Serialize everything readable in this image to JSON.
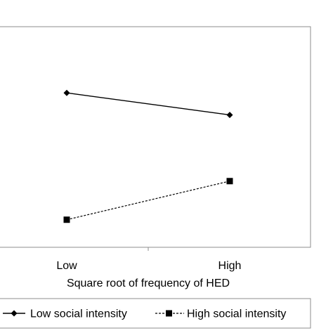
{
  "chart_data": {
    "type": "line",
    "title": "",
    "xlabel": "Square root of frequency of HED",
    "ylabel": "",
    "categories": [
      "Low",
      "High"
    ],
    "series": [
      {
        "name": "Low social intensity",
        "values": [
          0.64,
          0.52
        ],
        "marker": "diamond",
        "line_style": "solid",
        "color": "#000000"
      },
      {
        "name": "High social intensity",
        "values": [
          -0.05,
          0.16
        ],
        "marker": "square",
        "line_style": "dashed",
        "color": "#000000"
      }
    ],
    "ylim": [
      -0.2,
      1
    ],
    "legend_position": "bottom",
    "grid": false
  }
}
